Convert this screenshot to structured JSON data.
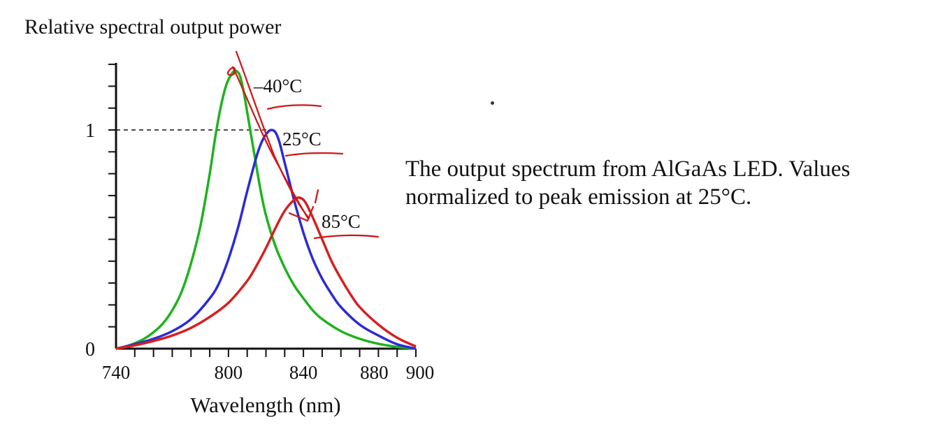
{
  "caption": {
    "line1": "The output spectrum from AlGaAs LED. Values",
    "line2": "normalized to peak emission at 25°C."
  },
  "chart_data": {
    "type": "line",
    "title": "",
    "ylabel": "Relative spectral output power",
    "xlabel": "Wavelength (nm)",
    "xlim": [
      740,
      900
    ],
    "ylim": [
      0,
      1.3
    ],
    "x_ticks": [
      740,
      800,
      840,
      880,
      900
    ],
    "y_ticks": [
      0,
      1
    ],
    "reference_line": {
      "y": 1,
      "style": "dashed"
    },
    "grid": false,
    "series": [
      {
        "name": "-40°C",
        "color": "#1db31d",
        "x": [
          740,
          745,
          750,
          755,
          760,
          765,
          770,
          775,
          780,
          785,
          790,
          793,
          796,
          799,
          802,
          804,
          806,
          808,
          811,
          814,
          817,
          820,
          825,
          830,
          835,
          840,
          845,
          850,
          860,
          870,
          880,
          890,
          900
        ],
        "y": [
          0,
          0.01,
          0.025,
          0.045,
          0.075,
          0.115,
          0.175,
          0.26,
          0.39,
          0.56,
          0.8,
          0.97,
          1.11,
          1.21,
          1.26,
          1.27,
          1.25,
          1.18,
          1.03,
          0.88,
          0.73,
          0.61,
          0.47,
          0.37,
          0.29,
          0.23,
          0.175,
          0.135,
          0.08,
          0.045,
          0.022,
          0.008,
          0
        ]
      },
      {
        "name": "25°C",
        "color": "#2b2bd6",
        "x": [
          740,
          750,
          760,
          770,
          780,
          790,
          795,
          800,
          805,
          810,
          815,
          818,
          821,
          823,
          825,
          827,
          830,
          835,
          840,
          845,
          850,
          855,
          860,
          870,
          880,
          890,
          900
        ],
        "y": [
          0,
          0.02,
          0.045,
          0.08,
          0.135,
          0.23,
          0.3,
          0.41,
          0.55,
          0.72,
          0.88,
          0.95,
          0.99,
          1.0,
          0.99,
          0.95,
          0.85,
          0.68,
          0.53,
          0.41,
          0.32,
          0.25,
          0.19,
          0.11,
          0.06,
          0.02,
          0
        ]
      },
      {
        "name": "85°C",
        "color": "#d61f1f",
        "x": [
          740,
          750,
          760,
          770,
          780,
          790,
          800,
          810,
          815,
          820,
          825,
          830,
          835,
          838,
          841,
          845,
          850,
          855,
          860,
          865,
          870,
          880,
          890,
          900
        ],
        "y": [
          0,
          0.015,
          0.035,
          0.06,
          0.095,
          0.145,
          0.21,
          0.31,
          0.38,
          0.46,
          0.55,
          0.63,
          0.68,
          0.69,
          0.67,
          0.6,
          0.5,
          0.4,
          0.32,
          0.25,
          0.19,
          0.11,
          0.05,
          0.01
        ]
      }
    ]
  },
  "annotations": {
    "labels": [
      "–40°C",
      "25°C",
      "85°C"
    ]
  }
}
